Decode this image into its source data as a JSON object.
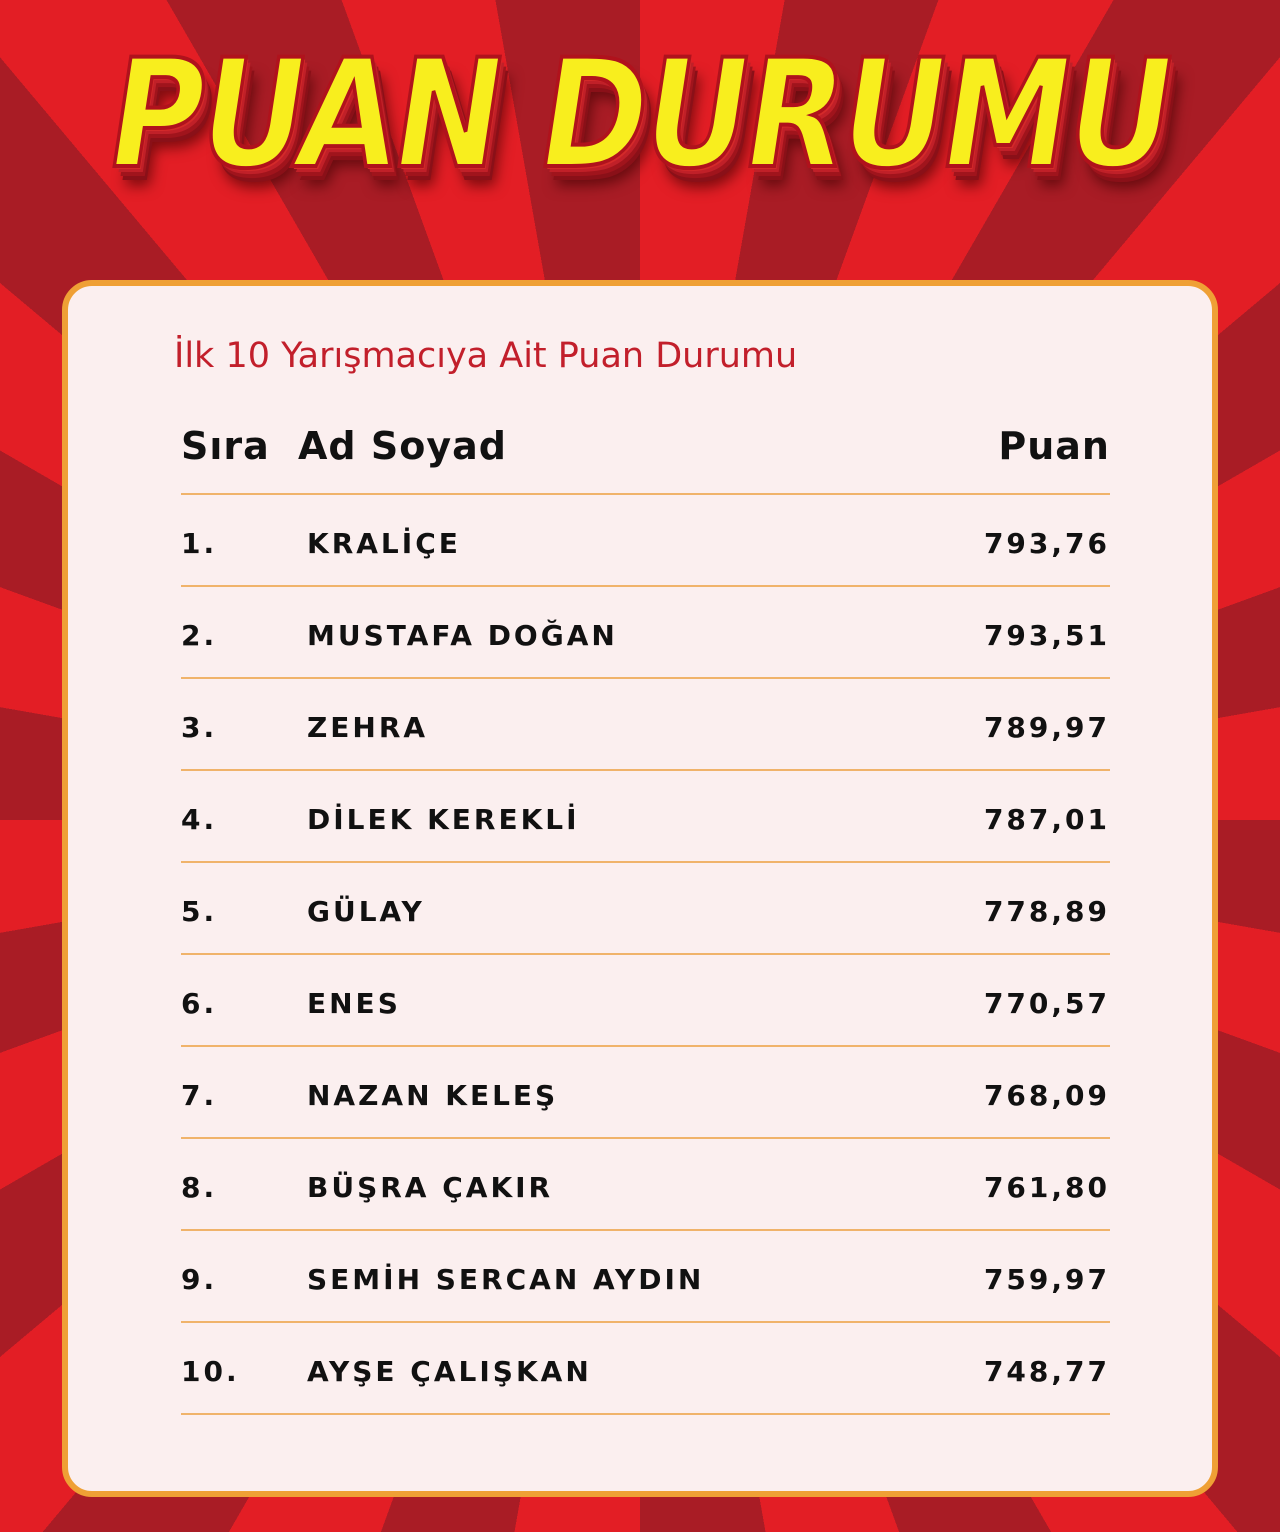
{
  "title": "PUAN DURUMU",
  "subtitle": "İlk 10 Yarışmacıya Ait Puan Durumu",
  "columns": {
    "rank": "Sıra",
    "name": "Ad Soyad",
    "score": "Puan"
  },
  "rows": [
    {
      "rank": "1.",
      "name": "KRALİÇE",
      "score": "793,76"
    },
    {
      "rank": "2.",
      "name": "MUSTAFA DOĞAN",
      "score": "793,51"
    },
    {
      "rank": "3.",
      "name": "ZEHRA",
      "score": "789,97"
    },
    {
      "rank": "4.",
      "name": "DİLEK KEREKLİ",
      "score": "787,01"
    },
    {
      "rank": "5.",
      "name": "GÜLAY",
      "score": "778,89"
    },
    {
      "rank": "6.",
      "name": "ENES",
      "score": "770,57"
    },
    {
      "rank": "7.",
      "name": "NAZAN KELEŞ",
      "score": "768,09"
    },
    {
      "rank": "8.",
      "name": "BÜŞRA ÇAKIR",
      "score": "761,80"
    },
    {
      "rank": "9.",
      "name": "SEMİH SERCAN AYDIN",
      "score": "759,97"
    },
    {
      "rank": "10.",
      "name": "AYŞE ÇALIŞKAN",
      "score": "748,77"
    }
  ],
  "colors": {
    "background_red": "#e31e25",
    "background_dark_red": "#a91c25",
    "title_yellow": "#f8ee1e",
    "card_border": "#efa035",
    "subtitle": "#c21f2b"
  }
}
